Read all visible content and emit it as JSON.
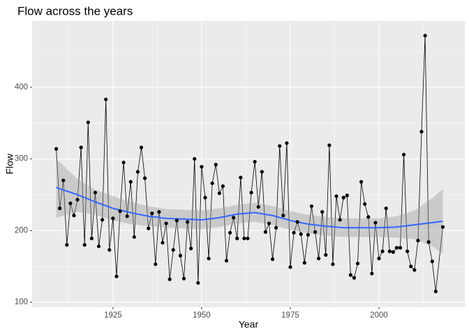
{
  "chart_data": {
    "type": "line",
    "title": "Flow across the years",
    "x_label": "Year",
    "y_label": "Flow",
    "x": [
      1909,
      1910,
      1911,
      1912,
      1913,
      1914,
      1915,
      1916,
      1917,
      1918,
      1919,
      1920,
      1921,
      1922,
      1923,
      1924,
      1925,
      1926,
      1927,
      1928,
      1929,
      1930,
      1931,
      1932,
      1933,
      1934,
      1935,
      1936,
      1937,
      1938,
      1939,
      1940,
      1941,
      1942,
      1943,
      1944,
      1945,
      1946,
      1947,
      1948,
      1949,
      1950,
      1951,
      1952,
      1953,
      1954,
      1955,
      1956,
      1957,
      1958,
      1959,
      1960,
      1961,
      1962,
      1963,
      1964,
      1965,
      1966,
      1967,
      1968,
      1969,
      1970,
      1971,
      1972,
      1973,
      1974,
      1975,
      1976,
      1977,
      1978,
      1979,
      1980,
      1981,
      1982,
      1983,
      1984,
      1985,
      1986,
      1987,
      1988,
      1989,
      1990,
      1991,
      1992,
      1993,
      1994,
      1995,
      1996,
      1997,
      1998,
      1999,
      2000,
      2001,
      2002,
      2003,
      2004,
      2005,
      2006,
      2007,
      2008,
      2009,
      2010,
      2011,
      2012,
      2013,
      2014,
      2015,
      2016,
      2018
    ],
    "values": [
      314,
      231,
      270,
      180,
      238,
      221,
      243,
      316,
      180,
      351,
      189,
      253,
      178,
      215,
      383,
      173,
      217,
      136,
      227,
      295,
      220,
      268,
      191,
      282,
      316,
      273,
      203,
      224,
      153,
      226,
      183,
      210,
      132,
      173,
      214,
      165,
      133,
      212,
      175,
      300,
      127,
      289,
      246,
      161,
      266,
      292,
      252,
      262,
      158,
      197,
      218,
      189,
      274,
      189,
      189,
      253,
      296,
      233,
      282,
      198,
      210,
      160,
      204,
      318,
      221,
      322,
      149,
      197,
      212,
      195,
      155,
      194,
      234,
      198,
      161,
      226,
      166,
      319,
      153,
      248,
      215,
      246,
      249,
      138,
      134,
      154,
      268,
      237,
      219,
      140,
      211,
      161,
      171,
      231,
      171,
      170,
      176,
      176,
      306,
      171,
      150,
      145,
      186,
      338,
      472,
      184,
      157,
      115,
      205
    ],
    "color": "#000000",
    "smooth": {
      "color": "#3366FF",
      "band_color": "#999999",
      "x": [
        1909,
        1915,
        1920,
        1925,
        1930,
        1935,
        1940,
        1945,
        1950,
        1955,
        1960,
        1965,
        1970,
        1975,
        1980,
        1985,
        1990,
        1995,
        2000,
        2005,
        2010,
        2015,
        2018
      ],
      "values": [
        260,
        250,
        240,
        231,
        225,
        220,
        217,
        216,
        215,
        218,
        223,
        225,
        221,
        214,
        209,
        206,
        204,
        204,
        204,
        205,
        208,
        211,
        213
      ],
      "lower": [
        218,
        226,
        222,
        214,
        209,
        206,
        204,
        203,
        202,
        205,
        210,
        212,
        208,
        201,
        196,
        193,
        191,
        191,
        191,
        190,
        188,
        178,
        168
      ],
      "upper": [
        300,
        272,
        257,
        248,
        240,
        234,
        230,
        229,
        228,
        231,
        236,
        239,
        234,
        227,
        222,
        219,
        217,
        217,
        217,
        220,
        228,
        245,
        258
      ]
    },
    "xlim": [
      1902.2,
      2024.2
    ],
    "ylim": [
      93.2,
      492.5
    ],
    "xticks": [
      1925,
      1950,
      1975,
      2000
    ],
    "yticks": [
      100,
      200,
      300,
      400
    ],
    "grid": true
  }
}
